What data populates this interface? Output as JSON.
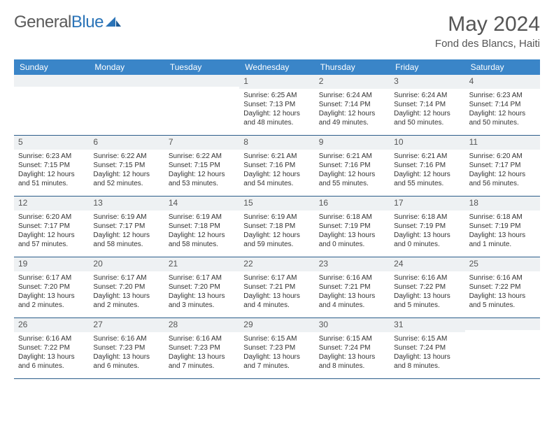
{
  "logo": {
    "word1": "General",
    "word2": "Blue"
  },
  "title": "May 2024",
  "location": "Fond des Blancs, Haiti",
  "colors": {
    "header_bg": "#3a85c8",
    "daynum_bg": "#eef1f3",
    "row_border": "#2b5d8a",
    "text": "#333333",
    "title_text": "#555555",
    "logo_gray": "#5a5a5a",
    "logo_blue": "#2b74b8"
  },
  "weekdays": [
    "Sunday",
    "Monday",
    "Tuesday",
    "Wednesday",
    "Thursday",
    "Friday",
    "Saturday"
  ],
  "weeks": [
    [
      null,
      null,
      null,
      {
        "n": "1",
        "sr": "Sunrise: 6:25 AM",
        "ss": "Sunset: 7:13 PM",
        "dl1": "Daylight: 12 hours",
        "dl2": "and 48 minutes."
      },
      {
        "n": "2",
        "sr": "Sunrise: 6:24 AM",
        "ss": "Sunset: 7:14 PM",
        "dl1": "Daylight: 12 hours",
        "dl2": "and 49 minutes."
      },
      {
        "n": "3",
        "sr": "Sunrise: 6:24 AM",
        "ss": "Sunset: 7:14 PM",
        "dl1": "Daylight: 12 hours",
        "dl2": "and 50 minutes."
      },
      {
        "n": "4",
        "sr": "Sunrise: 6:23 AM",
        "ss": "Sunset: 7:14 PM",
        "dl1": "Daylight: 12 hours",
        "dl2": "and 50 minutes."
      }
    ],
    [
      {
        "n": "5",
        "sr": "Sunrise: 6:23 AM",
        "ss": "Sunset: 7:15 PM",
        "dl1": "Daylight: 12 hours",
        "dl2": "and 51 minutes."
      },
      {
        "n": "6",
        "sr": "Sunrise: 6:22 AM",
        "ss": "Sunset: 7:15 PM",
        "dl1": "Daylight: 12 hours",
        "dl2": "and 52 minutes."
      },
      {
        "n": "7",
        "sr": "Sunrise: 6:22 AM",
        "ss": "Sunset: 7:15 PM",
        "dl1": "Daylight: 12 hours",
        "dl2": "and 53 minutes."
      },
      {
        "n": "8",
        "sr": "Sunrise: 6:21 AM",
        "ss": "Sunset: 7:16 PM",
        "dl1": "Daylight: 12 hours",
        "dl2": "and 54 minutes."
      },
      {
        "n": "9",
        "sr": "Sunrise: 6:21 AM",
        "ss": "Sunset: 7:16 PM",
        "dl1": "Daylight: 12 hours",
        "dl2": "and 55 minutes."
      },
      {
        "n": "10",
        "sr": "Sunrise: 6:21 AM",
        "ss": "Sunset: 7:16 PM",
        "dl1": "Daylight: 12 hours",
        "dl2": "and 55 minutes."
      },
      {
        "n": "11",
        "sr": "Sunrise: 6:20 AM",
        "ss": "Sunset: 7:17 PM",
        "dl1": "Daylight: 12 hours",
        "dl2": "and 56 minutes."
      }
    ],
    [
      {
        "n": "12",
        "sr": "Sunrise: 6:20 AM",
        "ss": "Sunset: 7:17 PM",
        "dl1": "Daylight: 12 hours",
        "dl2": "and 57 minutes."
      },
      {
        "n": "13",
        "sr": "Sunrise: 6:19 AM",
        "ss": "Sunset: 7:17 PM",
        "dl1": "Daylight: 12 hours",
        "dl2": "and 58 minutes."
      },
      {
        "n": "14",
        "sr": "Sunrise: 6:19 AM",
        "ss": "Sunset: 7:18 PM",
        "dl1": "Daylight: 12 hours",
        "dl2": "and 58 minutes."
      },
      {
        "n": "15",
        "sr": "Sunrise: 6:19 AM",
        "ss": "Sunset: 7:18 PM",
        "dl1": "Daylight: 12 hours",
        "dl2": "and 59 minutes."
      },
      {
        "n": "16",
        "sr": "Sunrise: 6:18 AM",
        "ss": "Sunset: 7:19 PM",
        "dl1": "Daylight: 13 hours",
        "dl2": "and 0 minutes."
      },
      {
        "n": "17",
        "sr": "Sunrise: 6:18 AM",
        "ss": "Sunset: 7:19 PM",
        "dl1": "Daylight: 13 hours",
        "dl2": "and 0 minutes."
      },
      {
        "n": "18",
        "sr": "Sunrise: 6:18 AM",
        "ss": "Sunset: 7:19 PM",
        "dl1": "Daylight: 13 hours",
        "dl2": "and 1 minute."
      }
    ],
    [
      {
        "n": "19",
        "sr": "Sunrise: 6:17 AM",
        "ss": "Sunset: 7:20 PM",
        "dl1": "Daylight: 13 hours",
        "dl2": "and 2 minutes."
      },
      {
        "n": "20",
        "sr": "Sunrise: 6:17 AM",
        "ss": "Sunset: 7:20 PM",
        "dl1": "Daylight: 13 hours",
        "dl2": "and 2 minutes."
      },
      {
        "n": "21",
        "sr": "Sunrise: 6:17 AM",
        "ss": "Sunset: 7:20 PM",
        "dl1": "Daylight: 13 hours",
        "dl2": "and 3 minutes."
      },
      {
        "n": "22",
        "sr": "Sunrise: 6:17 AM",
        "ss": "Sunset: 7:21 PM",
        "dl1": "Daylight: 13 hours",
        "dl2": "and 4 minutes."
      },
      {
        "n": "23",
        "sr": "Sunrise: 6:16 AM",
        "ss": "Sunset: 7:21 PM",
        "dl1": "Daylight: 13 hours",
        "dl2": "and 4 minutes."
      },
      {
        "n": "24",
        "sr": "Sunrise: 6:16 AM",
        "ss": "Sunset: 7:22 PM",
        "dl1": "Daylight: 13 hours",
        "dl2": "and 5 minutes."
      },
      {
        "n": "25",
        "sr": "Sunrise: 6:16 AM",
        "ss": "Sunset: 7:22 PM",
        "dl1": "Daylight: 13 hours",
        "dl2": "and 5 minutes."
      }
    ],
    [
      {
        "n": "26",
        "sr": "Sunrise: 6:16 AM",
        "ss": "Sunset: 7:22 PM",
        "dl1": "Daylight: 13 hours",
        "dl2": "and 6 minutes."
      },
      {
        "n": "27",
        "sr": "Sunrise: 6:16 AM",
        "ss": "Sunset: 7:23 PM",
        "dl1": "Daylight: 13 hours",
        "dl2": "and 6 minutes."
      },
      {
        "n": "28",
        "sr": "Sunrise: 6:16 AM",
        "ss": "Sunset: 7:23 PM",
        "dl1": "Daylight: 13 hours",
        "dl2": "and 7 minutes."
      },
      {
        "n": "29",
        "sr": "Sunrise: 6:15 AM",
        "ss": "Sunset: 7:23 PM",
        "dl1": "Daylight: 13 hours",
        "dl2": "and 7 minutes."
      },
      {
        "n": "30",
        "sr": "Sunrise: 6:15 AM",
        "ss": "Sunset: 7:24 PM",
        "dl1": "Daylight: 13 hours",
        "dl2": "and 8 minutes."
      },
      {
        "n": "31",
        "sr": "Sunrise: 6:15 AM",
        "ss": "Sunset: 7:24 PM",
        "dl1": "Daylight: 13 hours",
        "dl2": "and 8 minutes."
      },
      null
    ]
  ]
}
